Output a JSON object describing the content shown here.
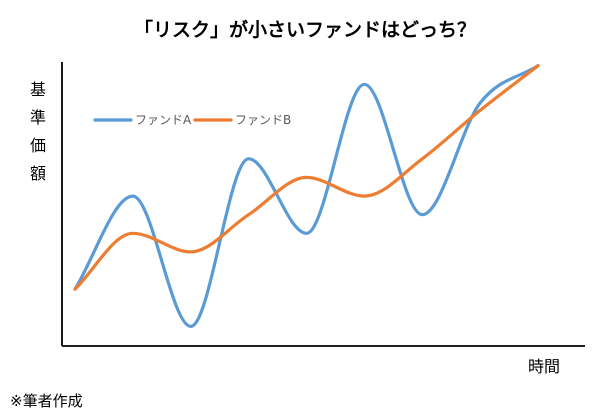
{
  "chart_data": {
    "type": "line",
    "title": "「リスク」が小さいファンドはどっち？",
    "ylabel": "基準価額",
    "xlabel": "時間",
    "x": [
      0,
      1,
      2,
      3,
      4,
      5,
      6,
      7,
      8
    ],
    "series": [
      {
        "name": "ファンドA",
        "color": "#5B9BD5",
        "values": [
          1.5,
          4.0,
          0.5,
          5.0,
          3.0,
          7.0,
          3.5,
          6.5,
          7.5
        ]
      },
      {
        "name": "ファンドB",
        "color": "#ED7D31",
        "values": [
          1.5,
          3.0,
          2.5,
          3.5,
          4.5,
          4.0,
          5.0,
          6.3,
          7.5
        ]
      }
    ],
    "ylim": [
      0,
      7.6
    ],
    "legend_position": "top-left",
    "grid": false
  },
  "footer": {
    "source": "※筆者作成"
  }
}
